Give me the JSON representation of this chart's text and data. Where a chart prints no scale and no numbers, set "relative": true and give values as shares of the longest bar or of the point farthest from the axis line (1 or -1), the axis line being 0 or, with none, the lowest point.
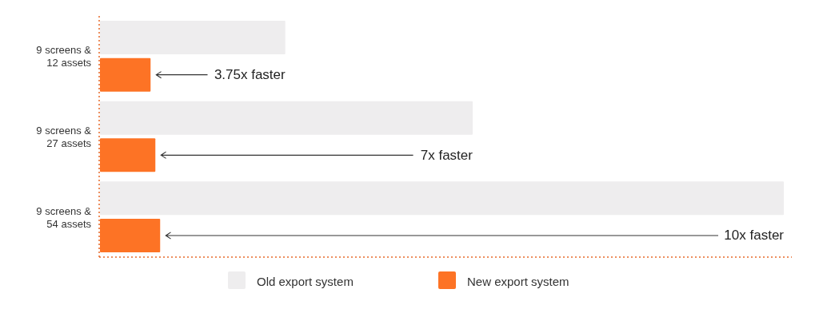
{
  "chart_data": {
    "type": "bar",
    "orientation": "horizontal",
    "relative": true,
    "categories": [
      "9 screens & 12 assets",
      "9 screens & 27 assets",
      "9 screens & 54 assets"
    ],
    "series": [
      {
        "name": "Old export system",
        "color": "#eeedee",
        "values": [
          0.271,
          0.545,
          1
        ]
      },
      {
        "name": "New export system",
        "color": "#fd7325",
        "values": [
          0.074,
          0.081,
          0.088
        ]
      }
    ],
    "annotations": [
      {
        "text": "3.75x faster",
        "y": "9 screens & 12 assets"
      },
      {
        "text": "7x faster",
        "y": "9 screens & 27 assets"
      },
      {
        "text": "10x faster",
        "y": "9 screens & 54 assets"
      }
    ],
    "legend": "bottom"
  }
}
